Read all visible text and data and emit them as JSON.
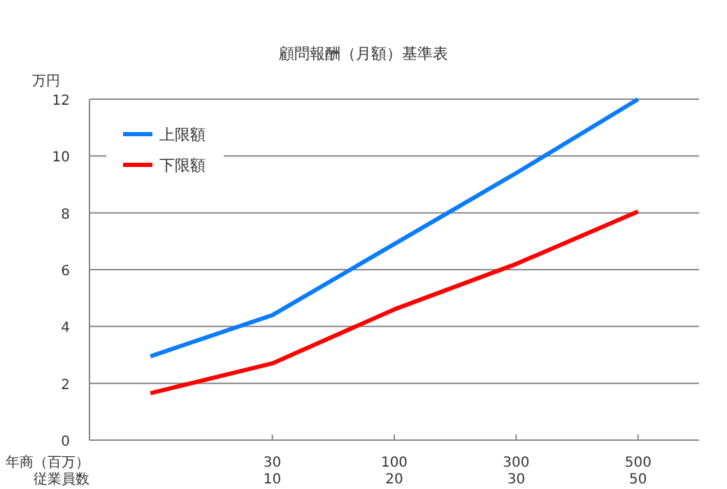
{
  "chart_data": {
    "type": "line",
    "title": "顧問報酬（月額）基準表",
    "ylabel": "万円",
    "xlabel": "年商（百万）",
    "annotations": [
      "従業員数"
    ],
    "categories": [
      null,
      "30\n10",
      "100\n20",
      "300\n30",
      "500\n50"
    ],
    "ylim": [
      0,
      12
    ],
    "yticks": [
      0,
      2,
      4,
      6,
      8,
      10,
      12
    ],
    "grid": "y",
    "legend": "top left",
    "marker": "none",
    "line_style": "solid",
    "series": [
      {
        "name": "上限額",
        "color": "#0a7cff",
        "values": [
          2.95,
          4.4,
          6.9,
          9.4,
          12
        ]
      },
      {
        "name": "下限額",
        "color": "#ff0000",
        "values": [
          1.65,
          2.7,
          4.6,
          6.2,
          8.05
        ]
      }
    ]
  }
}
